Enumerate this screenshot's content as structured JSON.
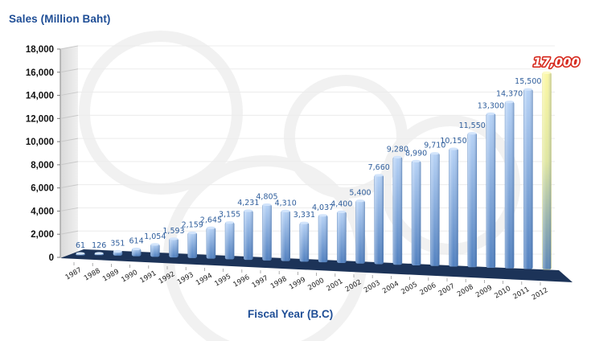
{
  "chart_data": {
    "type": "bar",
    "style": "3d-column",
    "title": "",
    "ylabel": "Sales (Million Baht)",
    "xlabel": "Fiscal Year (B.C)",
    "ylim": [
      0,
      18000
    ],
    "yticks": [
      "0",
      "2,000",
      "4,000",
      "6,000",
      "8,000",
      "10,000",
      "12,000",
      "14,000",
      "16,000",
      "18,000"
    ],
    "grid": true,
    "legend": null,
    "categories": [
      "1987",
      "1988",
      "1989",
      "1990",
      "1991",
      "1992",
      "1993",
      "1994",
      "1995",
      "1996",
      "1997",
      "1998",
      "1999",
      "2000",
      "2001",
      "2002",
      "2003",
      "2004",
      "2005",
      "2006",
      "2007",
      "2008",
      "2009",
      "2010",
      "2011",
      "2012"
    ],
    "values": [
      61,
      126,
      351,
      614,
      1054,
      1593,
      2159,
      2645,
      3155,
      4231,
      4805,
      4310,
      3331,
      4037,
      4400,
      5400,
      7660,
      9280,
      8990,
      9710,
      10150,
      11550,
      13300,
      14370,
      15500,
      17000
    ],
    "data_labels": [
      "61",
      "126",
      "351",
      "614",
      "1,054",
      "1,593",
      "2,159",
      "2,645",
      "3,155",
      "4,231",
      "4,805",
      "4,310",
      "3,331",
      "4,037",
      "4,400",
      "5,400",
      "7,660",
      "9,280",
      "8,990",
      "9,710",
      "10,150",
      "11,550",
      "13,300",
      "14,370",
      "15,500",
      "17,000"
    ],
    "highlight": {
      "category": "2012",
      "value": 17000,
      "label": "17,000",
      "note": "target / forecast bar"
    },
    "colors": {
      "bar_top": "#b6d2f6",
      "bar_bottom": "#4f7fbf",
      "floor": "#1c3358",
      "forecast_top": "#fbf7a2",
      "forecast_bottom": "#5b86b6",
      "forecast_label_stroke": "#d6281c",
      "axis_title": "#1f4e96",
      "data_label": "#2f5e9c"
    }
  }
}
